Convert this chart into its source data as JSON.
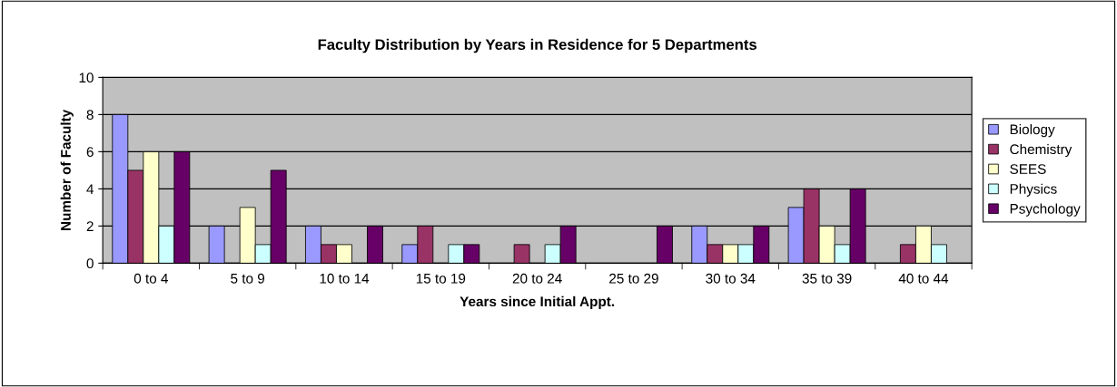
{
  "chart_data": {
    "type": "bar",
    "title": "Faculty Distribution by Years in Residence for 5 Departments",
    "xlabel": "Years since Initial Appt.",
    "ylabel": "Number of Faculty",
    "categories": [
      "0 to 4",
      "5 to 9",
      "10 to 14",
      "15 to 19",
      "20 to 24",
      "25 to 29",
      "30 to 34",
      "35 to 39",
      "40 to 44"
    ],
    "series": [
      {
        "name": "Biology",
        "color": "#9999ff",
        "values": [
          8,
          2,
          2,
          1,
          0,
          0,
          2,
          3,
          0
        ]
      },
      {
        "name": "Chemistry",
        "color": "#993366",
        "values": [
          5,
          0,
          1,
          2,
          1,
          0,
          1,
          4,
          1
        ]
      },
      {
        "name": "SEES",
        "color": "#ffffcc",
        "values": [
          6,
          3,
          1,
          0,
          0,
          0,
          1,
          2,
          2
        ]
      },
      {
        "name": "Physics",
        "color": "#ccffff",
        "values": [
          2,
          1,
          0,
          1,
          1,
          0,
          1,
          1,
          1
        ]
      },
      {
        "name": "Psychology",
        "color": "#660066",
        "values": [
          6,
          5,
          2,
          1,
          2,
          2,
          2,
          4,
          0
        ]
      }
    ],
    "ylim": [
      0,
      10
    ],
    "yticks": [
      0,
      2,
      4,
      6,
      8,
      10
    ],
    "grid": "y",
    "legend": "right"
  }
}
